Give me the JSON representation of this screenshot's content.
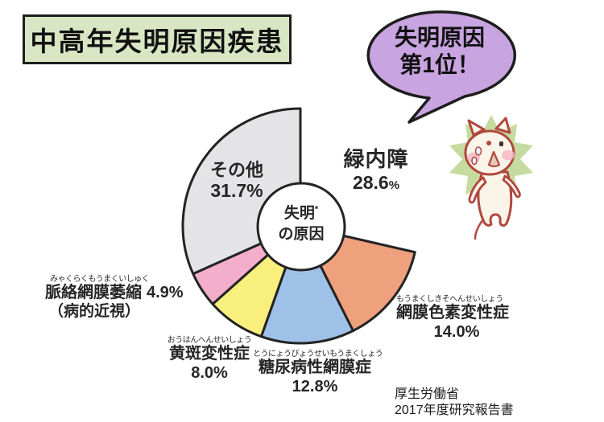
{
  "title": "中高年失明原因疾患",
  "speech_bubble": {
    "line1": "失明原因",
    "line2": "第1位！"
  },
  "center_label": {
    "main": "失明",
    "asterisk": "*",
    "sub": "の原因"
  },
  "source": {
    "line1": "厚生労働省",
    "line2": "2017年度研究報告書"
  },
  "colors": {
    "title_box_bg": "#d8e6c3",
    "bubble_bg": "#c8a4e0",
    "pie_border": "#232323",
    "glaucoma_green": "#b5d7a0",
    "retinitis_orange": "#efa07c",
    "diabetic_blue": "#9fc1e7",
    "macular_yellow": "#f9ef7d",
    "choroidal_pink": "#f3aecb",
    "other_gray": "#e4e3e5"
  },
  "chart_data": {
    "type": "pie",
    "title": "中高年失明原因疾患",
    "center_text": "失明の原因",
    "start_angle_deg": 0,
    "direction": "clockwise",
    "legend_position": "none",
    "slices": [
      {
        "id": "glaucoma",
        "label": "緑内障",
        "value": 28.6,
        "color": "#b5d7a0",
        "exploded": true
      },
      {
        "id": "retinitis-pigmentosa",
        "label": "網膜色素変性症",
        "reading": "もうまくしきそへんせいしょう",
        "value": 14.0,
        "color": "#efa07c",
        "exploded": false
      },
      {
        "id": "diabetic-retinopathy",
        "label": "糖尿病性網膜症",
        "reading": "とうにょうびょうせいもうまくしょう",
        "value": 12.8,
        "color": "#9fc1e7",
        "exploded": false
      },
      {
        "id": "macular-degeneration",
        "label": "黄斑変性症",
        "reading": "おうはんへんせいしょう",
        "value": 8.0,
        "color": "#f9ef7d",
        "exploded": false
      },
      {
        "id": "chorioretinal-atrophy",
        "label": "脈絡網膜萎縮（病的近視）",
        "reading": "みゃくらくもうまくいしゅく",
        "value": 4.9,
        "color": "#f3aecb",
        "exploded": false
      },
      {
        "id": "other",
        "label": "その他",
        "value": 31.7,
        "color": "#e4e3e5",
        "exploded": false
      }
    ]
  },
  "labels": {
    "glaucoma": {
      "name": "緑内障",
      "pct_num": "28.6",
      "pct_sign": "%"
    },
    "other": {
      "name": "その他",
      "pct": "31.7%"
    },
    "retinitis": {
      "furigana": "もうまくしきそへんせいしょう",
      "name": "網膜色素変性症",
      "pct": "14.0%"
    },
    "diabetic": {
      "furigana": "とうにょうびょうせいもうまくしょう",
      "name": "糖尿病性網膜症",
      "pct": "12.8%"
    },
    "macular": {
      "furigana": "おうはんへんせいしょう",
      "name": "黄斑変性症",
      "pct": "8.0%"
    },
    "choroidal": {
      "furigana": "みゃくらくもうまくいしゅく",
      "name": "脈絡網膜萎縮",
      "pct": "4.9%",
      "note": "（病的近視）"
    }
  }
}
